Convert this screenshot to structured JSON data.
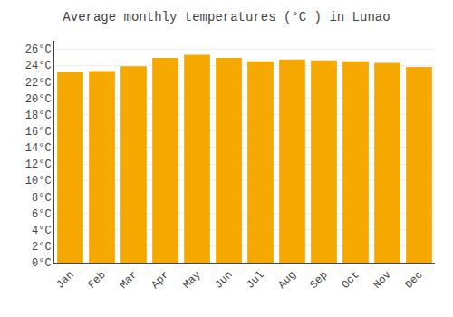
{
  "chart_data": {
    "type": "bar",
    "title": "Average monthly temperatures (°C ) in Lunao",
    "categories": [
      "Jan",
      "Feb",
      "Mar",
      "Apr",
      "May",
      "Jun",
      "Jul",
      "Aug",
      "Sep",
      "Oct",
      "Nov",
      "Dec"
    ],
    "values": [
      23.2,
      23.3,
      23.9,
      24.9,
      25.3,
      24.9,
      24.5,
      24.7,
      24.6,
      24.5,
      24.3,
      23.8
    ],
    "color": "#F5A800",
    "ylim": [
      0,
      27
    ],
    "yticks": [
      {
        "value": 0,
        "label": "0°C"
      },
      {
        "value": 2,
        "label": "2°C"
      },
      {
        "value": 4,
        "label": "4°C"
      },
      {
        "value": 6,
        "label": "6°C"
      },
      {
        "value": 8,
        "label": "8°C"
      },
      {
        "value": 10,
        "label": "10°C"
      },
      {
        "value": 12,
        "label": "12°C"
      },
      {
        "value": 14,
        "label": "14°C"
      },
      {
        "value": 16,
        "label": "16°C"
      },
      {
        "value": 18,
        "label": "18°C"
      },
      {
        "value": 20,
        "label": "20°C"
      },
      {
        "value": 22,
        "label": "22°C"
      },
      {
        "value": 24,
        "label": "24°C"
      },
      {
        "value": 26,
        "label": "26°C"
      }
    ],
    "grid": true
  }
}
